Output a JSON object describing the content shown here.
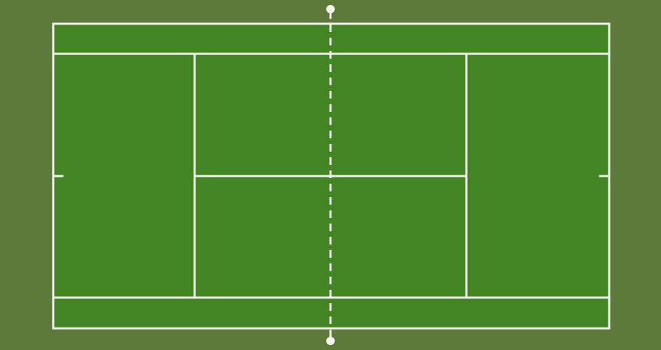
{
  "court": {
    "surround_color": "#5e7a3b",
    "surface_color": "#428523",
    "line_color": "#f4f6f0"
  }
}
